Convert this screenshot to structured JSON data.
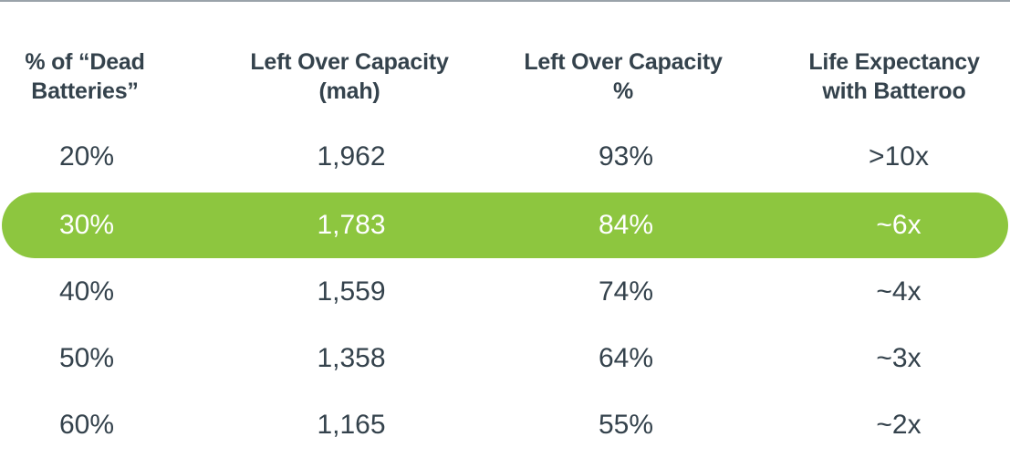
{
  "chart_data": {
    "type": "table",
    "columns": [
      [
        "% of “Dead",
        "Batteries”"
      ],
      [
        "Left Over Capacity",
        "(mah)"
      ],
      [
        "Left Over Capacity",
        "%"
      ],
      [
        "Life Expectancy",
        "with Batteroo"
      ]
    ],
    "rows": [
      [
        "20%",
        "1,962",
        "93%",
        ">10x"
      ],
      [
        "30%",
        "1,783",
        "84%",
        "~6x"
      ],
      [
        "40%",
        "1,559",
        "74%",
        "~4x"
      ],
      [
        "50%",
        "1,358",
        "64%",
        "~3x"
      ],
      [
        "60%",
        "1,165",
        "55%",
        "~2x"
      ]
    ],
    "highlighted_row": 1,
    "colors": {
      "highlight": "#8dc63f",
      "text": "#34424c",
      "highlight_text": "#ffffff"
    }
  }
}
